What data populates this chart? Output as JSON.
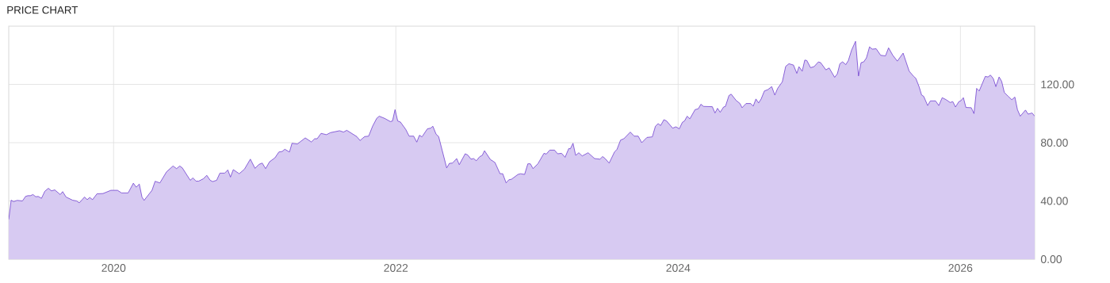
{
  "chart_data": {
    "type": "area",
    "title": "PRICE CHART",
    "x": [
      2019.257,
      2019.274,
      2019.292,
      2019.317,
      2019.354,
      2019.376,
      2019.392,
      2019.41,
      2019.429,
      2019.448,
      2019.466,
      2019.489,
      2019.513,
      2019.538,
      2019.56,
      2019.583,
      2019.622,
      2019.639,
      2019.663,
      2019.71,
      2019.738,
      2019.757,
      2019.794,
      2019.813,
      2019.831,
      2019.851,
      2019.882,
      2019.925,
      2019.981,
      2020.028,
      2020.056,
      2020.103,
      2020.14,
      2020.16,
      2020.182,
      2020.201,
      2020.216,
      2020.272,
      2020.294,
      2020.328,
      2020.375,
      2020.421,
      2020.446,
      2020.469,
      2020.487,
      2020.543,
      2020.562,
      2020.584,
      2020.603,
      2020.637,
      2020.66,
      2020.684,
      2020.702,
      2020.73,
      2020.753,
      2020.787,
      2020.809,
      2020.828,
      2020.848,
      2020.89,
      2020.927,
      2020.969,
      2021.002,
      2021.03,
      2021.053,
      2021.077,
      2021.105,
      2021.143,
      2021.171,
      2021.195,
      2021.213,
      2021.246,
      2021.264,
      2021.302,
      2021.358,
      2021.401,
      2021.424,
      2021.442,
      2021.47,
      2021.508,
      2021.536,
      2021.601,
      2021.629,
      2021.652,
      2021.723,
      2021.746,
      2021.779,
      2021.807,
      2021.835,
      2021.864,
      2021.882,
      2021.92,
      2021.961,
      2021.976,
      2021.994,
      2022.013,
      2022.032,
      2022.07,
      2022.094,
      2022.126,
      2022.148,
      2022.167,
      2022.185,
      2022.223,
      2022.247,
      2022.262,
      2022.285,
      2022.303,
      2022.36,
      2022.379,
      2022.401,
      2022.431,
      2022.449,
      2022.491,
      2022.51,
      2022.532,
      2022.551,
      2022.57,
      2022.594,
      2022.612,
      2022.628,
      2022.669,
      2022.702,
      2022.738,
      2022.757,
      2022.781,
      2022.8,
      2022.819,
      2022.865,
      2022.884,
      2022.912,
      2022.935,
      2022.953,
      2022.972,
      2023.006,
      2023.049,
      2023.066,
      2023.09,
      2023.124,
      2023.146,
      2023.174,
      2023.199,
      2023.225,
      2023.236,
      2023.255,
      2023.274,
      2023.296,
      2023.32,
      2023.362,
      2023.408,
      2023.446,
      2023.465,
      2023.483,
      2023.511,
      2023.549,
      2023.567,
      2023.592,
      2023.615,
      2023.661,
      2023.689,
      2023.717,
      2023.742,
      2023.779,
      2023.817,
      2023.839,
      2023.858,
      2023.876,
      2023.899,
      2023.918,
      2023.961,
      2023.985,
      2024.008,
      2024.03,
      2024.045,
      2024.064,
      2024.083,
      2024.12,
      2024.143,
      2024.161,
      2024.18,
      2024.242,
      2024.261,
      2024.279,
      2024.298,
      2024.322,
      2024.335,
      2024.36,
      2024.376,
      2024.41,
      2024.438,
      2024.453,
      2024.481,
      2024.514,
      2024.532,
      2024.551,
      2024.57,
      2024.588,
      2024.611,
      2024.635,
      2024.663,
      2024.685,
      2024.705,
      2024.738,
      2024.762,
      2024.785,
      2024.817,
      2024.841,
      2024.856,
      2024.879,
      2024.897,
      2024.912,
      2024.938,
      2024.963,
      2024.994,
      2025.01,
      2025.047,
      2025.07,
      2025.109,
      2025.128,
      2025.146,
      2025.165,
      2025.188,
      2025.206,
      2025.229,
      2025.257,
      2025.278,
      2025.296,
      2025.315,
      2025.334,
      2025.356,
      2025.375,
      2025.403,
      2025.435,
      2025.469,
      2025.491,
      2025.521,
      2025.553,
      2025.594,
      2025.637,
      2025.669,
      2025.684,
      2025.708,
      2025.725,
      2025.74,
      2025.768,
      2025.787,
      2025.824,
      2025.847,
      2025.871,
      2025.899,
      2025.927,
      2025.946,
      2025.965,
      2025.989,
      2026.002,
      2026.021,
      2026.039,
      2026.077,
      2026.096,
      2026.115,
      2026.133,
      2026.176,
      2026.195,
      2026.213,
      2026.233,
      2026.251,
      2026.274,
      2026.292,
      2026.311,
      2026.339,
      2026.364,
      2026.386,
      2026.404,
      2026.424,
      2026.461,
      2026.48,
      2026.508,
      2026.526
    ],
    "series": [
      {
        "color": "#6633cc",
        "values": [
          27.3,
          40.5,
          39.6,
          40.4,
          40,
          43.1,
          43.6,
          43.6,
          44.4,
          42.9,
          43.1,
          41.8,
          46.7,
          48.7,
          46.9,
          47.6,
          44.4,
          46.4,
          42.7,
          40.5,
          40,
          38.7,
          42.7,
          40.9,
          42.4,
          40.9,
          44.9,
          45.1,
          47.3,
          47.3,
          45.5,
          45.5,
          52.2,
          49.5,
          51.6,
          42.7,
          40.4,
          47.3,
          53.5,
          52.4,
          60,
          64,
          62.2,
          64,
          62.7,
          54.2,
          55.8,
          53.6,
          53.6,
          55.3,
          57.6,
          54.2,
          53.3,
          54.2,
          59.1,
          59.1,
          61.3,
          56.4,
          61.5,
          58.7,
          61.8,
          68.7,
          62.4,
          65.1,
          66,
          62.2,
          66.9,
          69.6,
          73.6,
          74,
          75.5,
          73.6,
          79.6,
          79.1,
          83.3,
          80.5,
          82.7,
          82.7,
          86.4,
          85.5,
          86.9,
          88.2,
          87.3,
          88.5,
          84.2,
          81.5,
          84.2,
          84.5,
          91.3,
          96.7,
          98.2,
          96.7,
          94.5,
          94.9,
          102.7,
          94.9,
          94.2,
          89.1,
          84.5,
          84.5,
          80.4,
          85.1,
          84,
          89.5,
          90,
          91.3,
          85.8,
          84.2,
          62.7,
          65.8,
          66,
          69.1,
          64.9,
          72.4,
          71.5,
          68.7,
          69.1,
          67.6,
          70.4,
          71.3,
          74.5,
          68.5,
          66.4,
          58.7,
          58.7,
          52.4,
          54.5,
          54.9,
          58.2,
          58.7,
          58.2,
          65.5,
          65.5,
          62.2,
          65.5,
          72.7,
          72.2,
          74.9,
          74.9,
          72.4,
          72.7,
          70,
          76,
          75.8,
          79.6,
          71.3,
          73.1,
          70.9,
          73.1,
          69.1,
          68.7,
          70.5,
          69.1,
          66,
          73.6,
          75.5,
          81.8,
          82.7,
          87.3,
          84.5,
          84.5,
          80,
          83.6,
          84,
          91.3,
          93.1,
          91.8,
          95.8,
          94.9,
          90,
          90.9,
          89.5,
          94,
          94.9,
          98.2,
          96.4,
          102.7,
          103.3,
          106.4,
          104.9,
          104.7,
          100.4,
          103.6,
          100.9,
          104.5,
          104.9,
          112.4,
          113.3,
          109.1,
          106.9,
          104,
          106.9,
          106.9,
          105.1,
          110,
          107.3,
          110,
          115.5,
          116.4,
          118.5,
          112.7,
          117.3,
          121.8,
          132.4,
          134.2,
          133.3,
          127.6,
          132.2,
          129.1,
          136.7,
          136.4,
          131.5,
          132.2,
          135.5,
          134.9,
          130,
          131.3,
          124.9,
          127.3,
          134.2,
          135.5,
          133.6,
          136.4,
          143.6,
          149.6,
          125.8,
          134.9,
          135.5,
          138.2,
          145.8,
          144.2,
          144.5,
          140,
          139.6,
          145.1,
          140,
          136,
          141.5,
          129.1,
          125.5,
          124.2,
          118.2,
          112.7,
          111.8,
          105.5,
          108.7,
          108.7,
          105.5,
          110.9,
          109.5,
          107.6,
          108.2,
          104.5,
          108.2,
          108.7,
          110.9,
          104.2,
          104,
          100,
          117.3,
          115.5,
          125.5,
          125.1,
          126.4,
          124,
          118.5,
          125.1,
          122.2,
          114.5,
          111.8,
          109.5,
          111.3,
          102.7,
          98.2,
          102.4,
          99.6,
          100.4,
          98.2
        ]
      }
    ],
    "xlim": [
      2019.257,
      2026.526
    ],
    "xticks": [
      2020,
      2022,
      2024,
      2026
    ],
    "ylim": [
      0,
      160
    ],
    "yticks": [
      {
        "value": 0,
        "label": "0.00"
      },
      {
        "value": 40,
        "label": "40.00"
      },
      {
        "value": 80,
        "label": "80.00"
      },
      {
        "value": 120,
        "label": "120.00"
      }
    ],
    "grid": true
  }
}
